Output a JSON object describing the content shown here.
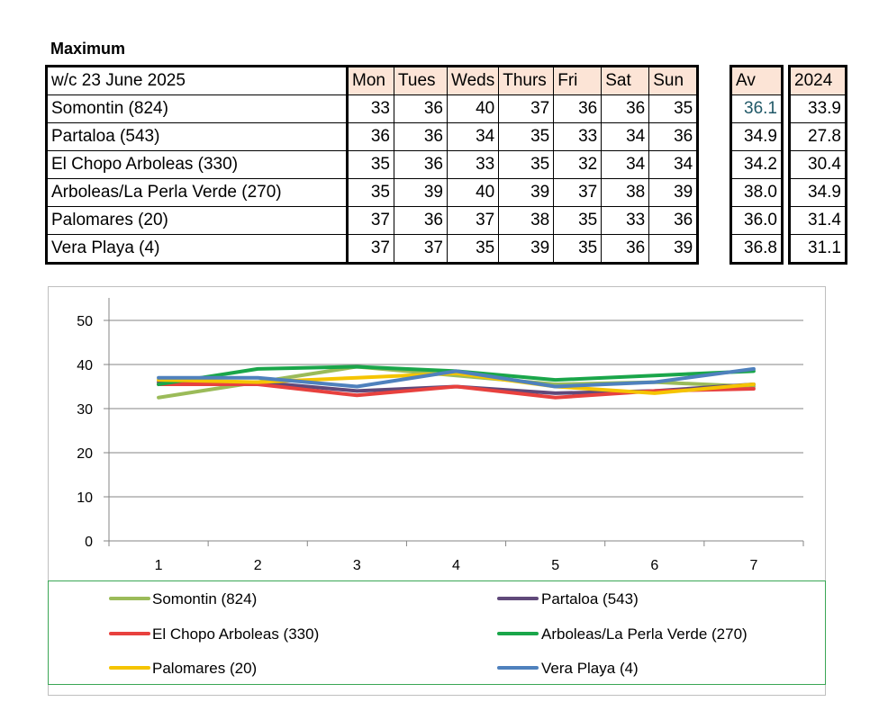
{
  "heading": "Maximum",
  "table": {
    "week_label": "w/c 23 June  2025",
    "days": [
      "Mon",
      "Tues",
      "Weds",
      "Thurs",
      "Fri",
      "Sat",
      "Sun"
    ],
    "av_header": "Av",
    "prev_header": "2024",
    "rows": [
      {
        "name": "Somontin (824)",
        "values": [
          "33",
          "36",
          "40",
          "37",
          "36",
          "36",
          "35"
        ],
        "av": "36.1",
        "prev": "33.9"
      },
      {
        "name": "Partaloa (543)",
        "values": [
          "36",
          "36",
          "34",
          "35",
          "33",
          "34",
          "36"
        ],
        "av": "34.9",
        "prev": "27.8"
      },
      {
        "name": "El Chopo  Arboleas (330)",
        "values": [
          "35",
          "36",
          "33",
          "35",
          "32",
          "34",
          "34"
        ],
        "av": "34.2",
        "prev": "30.4"
      },
      {
        "name": "Arboleas/La Perla Verde (270)",
        "values": [
          "35",
          "39",
          "40",
          "39",
          "37",
          "38",
          "39"
        ],
        "av": "38.0",
        "prev": "34.9"
      },
      {
        "name": "Palomares (20)",
        "values": [
          "37",
          "36",
          "37",
          "38",
          "35",
          "33",
          "36"
        ],
        "av": "36.0",
        "prev": "31.4"
      },
      {
        "name": "Vera Playa (4)",
        "values": [
          "37",
          "37",
          "35",
          "39",
          "35",
          "36",
          "39"
        ],
        "av": "36.8",
        "prev": "31.1"
      }
    ]
  },
  "chart_data": {
    "type": "line",
    "title": "",
    "xlabel": "",
    "ylabel": "",
    "x": [
      "1",
      "2",
      "3",
      "4",
      "5",
      "6",
      "7"
    ],
    "yticks": [
      "0",
      "10",
      "20",
      "30",
      "40",
      "50"
    ],
    "ylim": [
      0,
      50
    ],
    "grid": true,
    "legend": "bottom",
    "series": [
      {
        "name": "Somontin (824)",
        "color": "#9bbb59",
        "values": [
          32.5,
          36,
          39.5,
          37.5,
          35.5,
          36,
          35
        ]
      },
      {
        "name": "Partaloa (543)",
        "color": "#60497a",
        "values": [
          36,
          36,
          34,
          35,
          33.5,
          34,
          35.5
        ]
      },
      {
        "name": "El Chopo  Arboleas (330)",
        "color": "#e8413e",
        "values": [
          35.5,
          35.5,
          33,
          35,
          32.5,
          34,
          34.5
        ]
      },
      {
        "name": "Arboleas/La Perla Verde (270)",
        "color": "#1aa64a",
        "values": [
          35.5,
          39,
          39.5,
          38.5,
          36.5,
          37.5,
          38.5
        ]
      },
      {
        "name": "Palomares (20)",
        "color": "#f5c400",
        "values": [
          36.5,
          36,
          37,
          38,
          35,
          33.5,
          35.5
        ]
      },
      {
        "name": "Vera Playa (4)",
        "color": "#4f81bd",
        "values": [
          37,
          37,
          35,
          38.5,
          35,
          36,
          39
        ]
      }
    ]
  }
}
